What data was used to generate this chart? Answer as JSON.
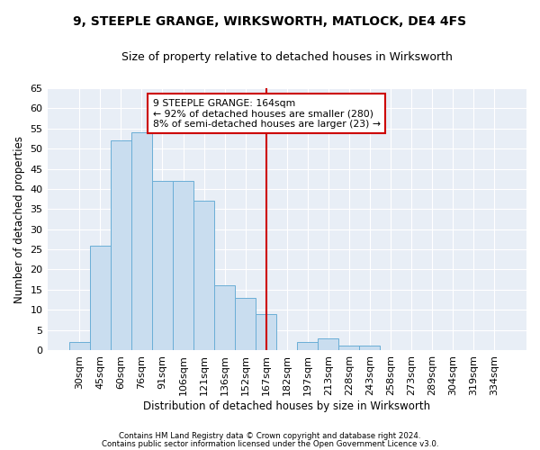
{
  "title": "9, STEEPLE GRANGE, WIRKSWORTH, MATLOCK, DE4 4FS",
  "subtitle": "Size of property relative to detached houses in Wirksworth",
  "xlabel": "Distribution of detached houses by size in Wirksworth",
  "ylabel": "Number of detached properties",
  "bar_color": "#c9ddef",
  "bar_edge_color": "#6aaed6",
  "background_color": "#e8eef6",
  "grid_color": "#ffffff",
  "categories": [
    "30sqm",
    "45sqm",
    "60sqm",
    "76sqm",
    "91sqm",
    "106sqm",
    "121sqm",
    "136sqm",
    "152sqm",
    "167sqm",
    "182sqm",
    "197sqm",
    "213sqm",
    "228sqm",
    "243sqm",
    "258sqm",
    "273sqm",
    "289sqm",
    "304sqm",
    "319sqm",
    "334sqm"
  ],
  "values": [
    2,
    26,
    52,
    54,
    42,
    42,
    37,
    16,
    13,
    9,
    0,
    2,
    3,
    1,
    1,
    0,
    0,
    0,
    0,
    0,
    0
  ],
  "ylim": [
    0,
    65
  ],
  "yticks": [
    0,
    5,
    10,
    15,
    20,
    25,
    30,
    35,
    40,
    45,
    50,
    55,
    60,
    65
  ],
  "property_line_x": 9.0,
  "property_line_color": "#cc0000",
  "annotation_line1": "9 STEEPLE GRANGE: 164sqm",
  "annotation_line2": "← 92% of detached houses are smaller (280)",
  "annotation_line3": "8% of semi-detached houses are larger (23) →",
  "annotation_box_color": "#ffffff",
  "annotation_box_edge": "#cc0000",
  "footer1": "Contains HM Land Registry data © Crown copyright and database right 2024.",
  "footer2": "Contains public sector information licensed under the Open Government Licence v3.0."
}
